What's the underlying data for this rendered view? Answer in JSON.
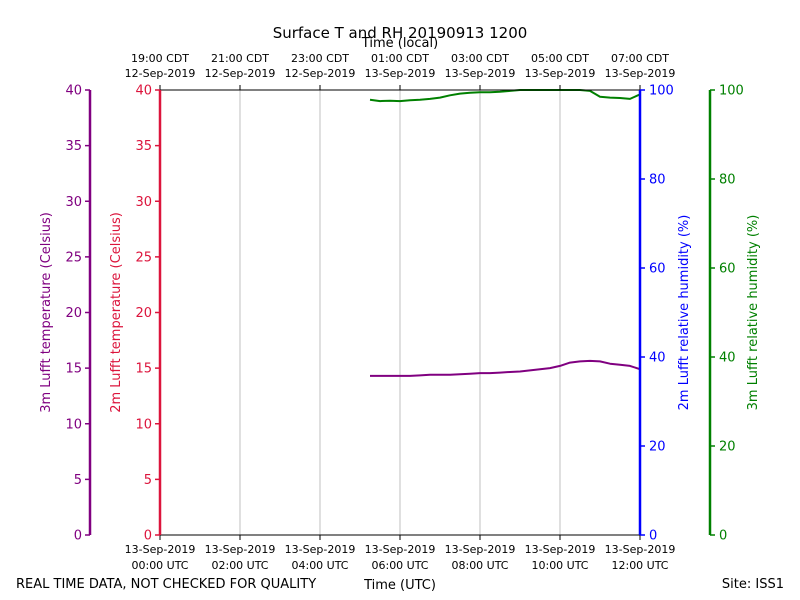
{
  "chart_data": {
    "type": "line",
    "title": "Surface T and RH 20190913 1200",
    "top_axis_label": "Time (local)",
    "xlabel": "Time (UTC)",
    "xlim": [
      "2019-09-13T00:00Z",
      "2019-09-13T12:00Z"
    ],
    "x_ticks_utc": [
      {
        "date": "13-Sep-2019",
        "time": "00:00 UTC"
      },
      {
        "date": "13-Sep-2019",
        "time": "02:00 UTC"
      },
      {
        "date": "13-Sep-2019",
        "time": "04:00 UTC"
      },
      {
        "date": "13-Sep-2019",
        "time": "06:00 UTC"
      },
      {
        "date": "13-Sep-2019",
        "time": "08:00 UTC"
      },
      {
        "date": "13-Sep-2019",
        "time": "10:00 UTC"
      },
      {
        "date": "13-Sep-2019",
        "time": "12:00 UTC"
      }
    ],
    "x_ticks_local": [
      {
        "time": "19:00 CDT",
        "date": "12-Sep-2019"
      },
      {
        "time": "21:00 CDT",
        "date": "12-Sep-2019"
      },
      {
        "time": "23:00 CDT",
        "date": "12-Sep-2019"
      },
      {
        "time": "01:00 CDT",
        "date": "13-Sep-2019"
      },
      {
        "time": "03:00 CDT",
        "date": "13-Sep-2019"
      },
      {
        "time": "05:00 CDT",
        "date": "13-Sep-2019"
      },
      {
        "time": "07:00 CDT",
        "date": "13-Sep-2019"
      }
    ],
    "grid": "vertical",
    "axes": [
      {
        "id": "t3m",
        "label": "3m Lufft temperature (Celsius)",
        "side": "left-outer",
        "color": "#800080",
        "range": [
          0,
          40
        ],
        "ticks": [
          0,
          5,
          10,
          15,
          20,
          25,
          30,
          35,
          40
        ]
      },
      {
        "id": "t2m",
        "label": "2m Lufft temperature (Celsius)",
        "side": "left-inner",
        "color": "#dc143c",
        "range": [
          0,
          40
        ],
        "ticks": [
          0,
          5,
          10,
          15,
          20,
          25,
          30,
          35,
          40
        ]
      },
      {
        "id": "rh2m",
        "label": "2m Lufft relative humidity (%)",
        "side": "right-inner",
        "color": "#0000ff",
        "range": [
          0,
          100
        ],
        "ticks": [
          0,
          20,
          40,
          60,
          80,
          100
        ]
      },
      {
        "id": "rh3m",
        "label": "3m Lufft relative humidity (%)",
        "side": "right-outer",
        "color": "#008000",
        "range": [
          0,
          100
        ],
        "ticks": [
          0,
          20,
          40,
          60,
          80,
          100
        ]
      }
    ],
    "series": [
      {
        "axis": "t3m",
        "color": "#800080",
        "x": [
          "2019-09-13T05:15Z",
          "2019-09-13T05:30Z",
          "2019-09-13T05:45Z",
          "2019-09-13T06:00Z",
          "2019-09-13T06:15Z",
          "2019-09-13T06:30Z",
          "2019-09-13T06:45Z",
          "2019-09-13T07:00Z",
          "2019-09-13T07:15Z",
          "2019-09-13T07:30Z",
          "2019-09-13T07:45Z",
          "2019-09-13T08:00Z",
          "2019-09-13T08:15Z",
          "2019-09-13T08:30Z",
          "2019-09-13T08:45Z",
          "2019-09-13T09:00Z",
          "2019-09-13T09:15Z",
          "2019-09-13T09:30Z",
          "2019-09-13T09:45Z",
          "2019-09-13T10:00Z",
          "2019-09-13T10:15Z",
          "2019-09-13T10:30Z",
          "2019-09-13T10:45Z",
          "2019-09-13T11:00Z",
          "2019-09-13T11:15Z",
          "2019-09-13T11:30Z",
          "2019-09-13T11:45Z",
          "2019-09-13T12:00Z"
        ],
        "y": [
          14.3,
          14.3,
          14.3,
          14.3,
          14.3,
          14.35,
          14.4,
          14.4,
          14.4,
          14.45,
          14.5,
          14.55,
          14.55,
          14.6,
          14.65,
          14.7,
          14.8,
          14.9,
          15.0,
          15.2,
          15.5,
          15.6,
          15.65,
          15.6,
          15.4,
          15.3,
          15.2,
          14.9
        ]
      },
      {
        "axis": "rh3m",
        "color": "#008000",
        "x": [
          "2019-09-13T05:15Z",
          "2019-09-13T05:30Z",
          "2019-09-13T05:45Z",
          "2019-09-13T06:00Z",
          "2019-09-13T06:15Z",
          "2019-09-13T06:30Z",
          "2019-09-13T06:45Z",
          "2019-09-13T07:00Z",
          "2019-09-13T07:15Z",
          "2019-09-13T07:30Z",
          "2019-09-13T07:45Z",
          "2019-09-13T08:00Z",
          "2019-09-13T08:15Z",
          "2019-09-13T08:30Z",
          "2019-09-13T08:45Z",
          "2019-09-13T09:00Z",
          "2019-09-13T09:30Z",
          "2019-09-13T10:00Z",
          "2019-09-13T10:30Z",
          "2019-09-13T10:45Z",
          "2019-09-13T11:00Z",
          "2019-09-13T11:15Z",
          "2019-09-13T11:30Z",
          "2019-09-13T11:45Z",
          "2019-09-13T12:00Z"
        ],
        "y": [
          97.8,
          97.5,
          97.6,
          97.5,
          97.7,
          97.8,
          98.0,
          98.3,
          98.8,
          99.2,
          99.4,
          99.5,
          99.5,
          99.6,
          99.8,
          100,
          100,
          100,
          100,
          99.8,
          98.5,
          98.3,
          98.2,
          98.0,
          99.0
        ]
      }
    ]
  },
  "footer": {
    "disclaimer": "REAL TIME DATA, NOT CHECKED FOR QUALITY",
    "site": "Site: ISS1"
  }
}
